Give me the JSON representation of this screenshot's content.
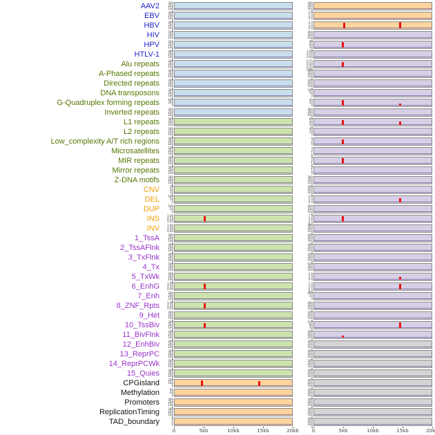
{
  "palette": {
    "labels": {
      "virus": "#2222cc",
      "repeat": "#557700",
      "sv": "#f0a000",
      "chrom": "#9933cc",
      "misc": "#111111"
    },
    "panels": {
      "blue": "#c9deec",
      "green": "#cde3ad",
      "orange": "#fdd49e",
      "purple": "#d6cfe6",
      "gray": "#d4d4d4"
    },
    "spike": "#e51111",
    "baseline": "#7a6a9b"
  },
  "chart_data": {
    "type": "line",
    "title": "",
    "xlabel": "",
    "x_ticks": [
      "0",
      "5kb",
      "10kb",
      "15kb",
      "20kb"
    ],
    "x_tick_pos": [
      0,
      0.25,
      0.5,
      0.75,
      1
    ],
    "legend": "none",
    "note": "Two columns of per-feature signal tracks over a 0-20kb window; red spikes mark enrichment peaks near 5kb and 15kb.",
    "rows": [
      {
        "label": "AAV2",
        "g": "virus",
        "l": {
          "bg": "blue",
          "t": [
            "300",
            "200",
            "100",
            "0"
          ]
        },
        "r": {
          "bg": "orange",
          "t": [
            "300",
            "200",
            "100",
            "0"
          ]
        }
      },
      {
        "label": "EBV",
        "g": "virus",
        "l": {
          "bg": "blue",
          "t": [
            "300",
            "200",
            "100",
            "0"
          ]
        },
        "r": {
          "bg": "orange",
          "t": [
            "2.0",
            "1.0",
            "0.0"
          ]
        }
      },
      {
        "label": "HBV",
        "g": "virus",
        "l": {
          "bg": "blue",
          "t": [
            "300",
            "200",
            "100",
            "0"
          ]
        },
        "r": {
          "bg": "orange",
          "t": [
            "2.0",
            "1.0",
            "0.0"
          ],
          "s": [
            [
              0.25,
              0.85
            ],
            [
              0.73,
              0.9
            ]
          ]
        }
      },
      {
        "label": "HIV",
        "g": "virus",
        "l": {
          "bg": "blue",
          "t": [
            "500",
            "300",
            "100"
          ]
        },
        "r": {
          "bg": "purple",
          "t": [
            "300",
            "200",
            "100",
            "0"
          ]
        }
      },
      {
        "label": "HPV",
        "g": "virus",
        "l": {
          "bg": "blue",
          "t": [
            "300",
            "200",
            "100",
            "0"
          ]
        },
        "r": {
          "bg": "purple",
          "t": [
            "90",
            "60",
            "30",
            "0"
          ],
          "s": [
            [
              0.24,
              0.8
            ]
          ]
        }
      },
      {
        "label": "HTLV-1",
        "g": "virus",
        "l": {
          "bg": "blue",
          "t": [
            "300",
            "200",
            "100",
            "0"
          ]
        },
        "r": {
          "bg": "purple",
          "t": [
            "1.00",
            "0.50",
            "0.00"
          ]
        }
      },
      {
        "label": "Alu repeats",
        "g": "repeat",
        "l": {
          "bg": "blue",
          "t": [
            "300",
            "200",
            "100",
            "0"
          ]
        },
        "r": {
          "bg": "purple",
          "t": [
            "0.75",
            "0.50",
            "0.25",
            "0.00"
          ],
          "s": [
            [
              0.24,
              0.75
            ]
          ]
        }
      },
      {
        "label": "A-Phased repeats",
        "g": "repeat",
        "l": {
          "bg": "blue",
          "t": [
            "300",
            "200",
            "100",
            "0"
          ]
        },
        "r": {
          "bg": "purple",
          "t": [
            "300",
            "200",
            "100",
            "0"
          ]
        }
      },
      {
        "label": "Directed repeats",
        "g": "repeat",
        "l": {
          "bg": "blue",
          "t": [
            "300",
            "200",
            "100",
            "0"
          ]
        },
        "r": {
          "bg": "purple",
          "t": [
            "300",
            "200",
            "100",
            "0"
          ]
        }
      },
      {
        "label": "DNA transposons",
        "g": "repeat",
        "l": {
          "bg": "blue",
          "t": [
            "300",
            "200",
            "100",
            "0"
          ]
        },
        "r": {
          "bg": "purple",
          "t": [
            "100",
            "50",
            "0"
          ]
        }
      },
      {
        "label": "G-Quadruplex forming repeats",
        "g": "repeat",
        "l": {
          "bg": "blue",
          "t": [
            "400",
            "200",
            "0"
          ]
        },
        "r": {
          "bg": "purple",
          "t": [
            "40",
            "20",
            "0"
          ],
          "s": [
            [
              0.24,
              0.8
            ],
            [
              0.73,
              0.3
            ]
          ]
        }
      },
      {
        "label": "Inverted repeats",
        "g": "repeat",
        "l": {
          "bg": "blue",
          "t": [
            "300",
            "200",
            "100",
            "0"
          ]
        },
        "r": {
          "bg": "purple",
          "t": [
            "300",
            "200",
            "100",
            "0"
          ]
        }
      },
      {
        "label": "L1 repeats",
        "g": "repeat",
        "l": {
          "bg": "green",
          "t": [
            "500",
            "300",
            "100"
          ]
        },
        "r": {
          "bg": "purple",
          "t": [
            "60",
            "40",
            "20",
            "0"
          ],
          "s": [
            [
              0.24,
              0.75
            ],
            [
              0.73,
              0.55
            ]
          ]
        }
      },
      {
        "label": "L2 repeats",
        "g": "repeat",
        "l": {
          "bg": "green",
          "t": [
            "300",
            "200",
            "100",
            "0"
          ]
        },
        "r": {
          "bg": "purple",
          "t": [
            "40",
            "20",
            "0"
          ]
        }
      },
      {
        "label": "Low_complexity A/T rich regions",
        "g": "repeat",
        "l": {
          "bg": "green",
          "t": [
            "300",
            "200",
            "100",
            "0"
          ]
        },
        "r": {
          "bg": "purple",
          "t": [
            "4",
            "2",
            "0"
          ],
          "s": [
            [
              0.24,
              0.75
            ]
          ]
        }
      },
      {
        "label": "Microsatellites",
        "g": "repeat",
        "l": {
          "bg": "green",
          "t": [
            "300",
            "200",
            "100",
            "0"
          ]
        },
        "r": {
          "bg": "purple",
          "t": [
            "3",
            "2",
            "1",
            "0"
          ]
        }
      },
      {
        "label": "MIR repeats",
        "g": "repeat",
        "l": {
          "bg": "green",
          "t": [
            "300",
            "200",
            "100",
            "0"
          ]
        },
        "r": {
          "bg": "purple",
          "t": [
            "3",
            "2",
            "1",
            "0"
          ],
          "s": [
            [
              0.24,
              0.8
            ]
          ]
        }
      },
      {
        "label": "Mirror repeats",
        "g": "repeat",
        "l": {
          "bg": "green",
          "t": [
            "500",
            "300",
            "100"
          ]
        },
        "r": {
          "bg": "purple",
          "t": [
            "2",
            "1",
            "0"
          ]
        }
      },
      {
        "label": "Z-DNA motifs",
        "g": "repeat",
        "l": {
          "bg": "green",
          "t": [
            "300",
            "200",
            "100",
            "0"
          ]
        },
        "r": {
          "bg": "purple",
          "t": [
            "300",
            "200",
            "100",
            "0"
          ]
        }
      },
      {
        "label": "CNV",
        "g": "sv",
        "l": {
          "bg": "green",
          "t": [
            "30",
            "20",
            "10",
            "0"
          ]
        },
        "r": {
          "bg": "purple",
          "t": [
            "300",
            "200",
            "100",
            "0"
          ]
        }
      },
      {
        "label": "DEL",
        "g": "sv",
        "l": {
          "bg": "green",
          "t": [
            "100",
            "50",
            "0"
          ]
        },
        "r": {
          "bg": "purple",
          "t": [
            "2.0",
            "1.0",
            "0.0"
          ],
          "s": [
            [
              0.73,
              0.6
            ]
          ]
        }
      },
      {
        "label": "DUP",
        "g": "sv",
        "l": {
          "bg": "green",
          "t": [
            "100",
            "50",
            "0"
          ]
        },
        "r": {
          "bg": "purple",
          "t": [
            "300",
            "200",
            "100",
            "0"
          ]
        }
      },
      {
        "label": "INS",
        "g": "sv",
        "l": {
          "bg": "green",
          "t": [
            "1.00",
            "0.50",
            "0.00"
          ],
          "s": [
            [
              0.25,
              0.85
            ]
          ]
        },
        "r": {
          "bg": "purple",
          "t": [
            "7.5",
            "5.0",
            "2.5",
            "0.0"
          ],
          "s": [
            [
              0.24,
              0.8
            ]
          ]
        }
      },
      {
        "label": "INV",
        "g": "sv",
        "l": {
          "bg": "green",
          "t": [
            "1.00",
            "0.50",
            "0.00"
          ]
        },
        "r": {
          "bg": "purple",
          "t": [
            "300",
            "200",
            "100",
            "0"
          ]
        }
      },
      {
        "label": "1_TssA",
        "g": "chrom",
        "l": {
          "bg": "green",
          "t": [
            "300",
            "200",
            "100",
            "0"
          ]
        },
        "r": {
          "bg": "purple",
          "t": [
            "300",
            "200",
            "100",
            "0"
          ]
        }
      },
      {
        "label": "2_TssAFlnk",
        "g": "chrom",
        "l": {
          "bg": "green",
          "t": [
            "300",
            "200",
            "100",
            "0"
          ]
        },
        "r": {
          "bg": "purple",
          "t": [
            "300",
            "200",
            "100",
            "0"
          ]
        }
      },
      {
        "label": "3_TxFlnk",
        "g": "chrom",
        "l": {
          "bg": "green",
          "t": [
            "300",
            "200",
            "100",
            "0"
          ]
        },
        "r": {
          "bg": "purple",
          "t": [
            "300",
            "200",
            "100",
            "0"
          ]
        }
      },
      {
        "label": "4_Tx",
        "g": "chrom",
        "l": {
          "bg": "green",
          "t": [
            "500",
            "300",
            "100"
          ]
        },
        "r": {
          "bg": "purple",
          "t": [
            "500",
            "300",
            "100"
          ]
        }
      },
      {
        "label": "5_TxWk",
        "g": "chrom",
        "l": {
          "bg": "green",
          "t": [
            "300",
            "200",
            "100",
            "0"
          ]
        },
        "r": {
          "bg": "purple",
          "t": [
            "2.0",
            "1.0",
            "0.0"
          ],
          "s": [
            [
              0.73,
              0.45
            ]
          ]
        }
      },
      {
        "label": "6_EnhG",
        "g": "chrom",
        "l": {
          "bg": "green",
          "t": [
            "1.00",
            "0.50",
            "0.00"
          ],
          "s": [
            [
              0.25,
              0.8
            ]
          ]
        },
        "r": {
          "bg": "purple",
          "t": [
            "1.5",
            "1.0",
            "0.5",
            "0.0"
          ],
          "s": [
            [
              0.73,
              0.8
            ]
          ]
        }
      },
      {
        "label": "7_Enh",
        "g": "chrom",
        "l": {
          "bg": "green",
          "t": [
            "300",
            "200",
            "100",
            "0"
          ]
        },
        "r": {
          "bg": "purple",
          "t": [
            "100",
            "50",
            "0"
          ]
        }
      },
      {
        "label": "8_ZNF_Rpts",
        "g": "chrom",
        "l": {
          "bg": "green",
          "t": [
            "1.00",
            "0.50",
            "0.00"
          ],
          "s": [
            [
              0.25,
              0.8
            ]
          ]
        },
        "r": {
          "bg": "purple",
          "t": [
            "300",
            "200",
            "100",
            "0"
          ]
        }
      },
      {
        "label": "9_Het",
        "g": "chrom",
        "l": {
          "bg": "green",
          "t": [
            "300",
            "200",
            "100",
            "0"
          ]
        },
        "r": {
          "bg": "purple",
          "t": [
            "300",
            "200",
            "100",
            "0"
          ]
        }
      },
      {
        "label": "10_TssBiv",
        "g": "chrom",
        "l": {
          "bg": "green",
          "t": [
            "300",
            "200",
            "100",
            "0"
          ],
          "s": [
            [
              0.25,
              0.7
            ]
          ]
        },
        "r": {
          "bg": "purple",
          "t": [
            "120",
            "80",
            "40",
            "0"
          ],
          "s": [
            [
              0.73,
              0.85
            ]
          ]
        }
      },
      {
        "label": "11_BivFlnk",
        "g": "chrom",
        "l": {
          "bg": "green",
          "t": [
            "300",
            "200",
            "100",
            "0"
          ]
        },
        "r": {
          "bg": "purple",
          "t": [
            "300",
            "200",
            "100",
            "0"
          ],
          "s": [
            [
              0.24,
              0.3
            ]
          ]
        }
      },
      {
        "label": "12_EnhBiv",
        "g": "chrom",
        "l": {
          "bg": "green",
          "t": [
            "300",
            "200",
            "100",
            "0"
          ]
        },
        "r": {
          "bg": "gray",
          "t": [
            "300",
            "200",
            "100",
            "0"
          ]
        }
      },
      {
        "label": "13_ReprPC",
        "g": "chrom",
        "l": {
          "bg": "green",
          "t": [
            "300",
            "200",
            "100",
            "0"
          ]
        },
        "r": {
          "bg": "gray",
          "t": [
            "300",
            "200",
            "100",
            "0"
          ]
        }
      },
      {
        "label": "14_ReprPCWk",
        "g": "chrom",
        "l": {
          "bg": "green",
          "t": [
            "300",
            "200",
            "100",
            "0"
          ]
        },
        "r": {
          "bg": "gray",
          "t": [
            "300",
            "200",
            "100",
            "0"
          ]
        }
      },
      {
        "label": "15_Quies",
        "g": "chrom",
        "l": {
          "bg": "green",
          "t": [
            "300",
            "200",
            "100",
            "0"
          ]
        },
        "r": {
          "bg": "gray",
          "t": [
            "300",
            "200",
            "100",
            "0"
          ]
        }
      },
      {
        "label": "CPGisland",
        "g": "misc",
        "l": {
          "bg": "orange",
          "t": [
            "200",
            "100",
            "0"
          ],
          "s": [
            [
              0.23,
              0.8
            ],
            [
              0.72,
              0.75
            ]
          ]
        },
        "r": {
          "bg": "gray",
          "t": [
            "300",
            "200",
            "100",
            "0"
          ]
        }
      },
      {
        "label": "Methylation",
        "g": "misc",
        "l": {
          "bg": "orange",
          "t": [
            "80",
            "40",
            "0"
          ]
        },
        "r": {
          "bg": "gray",
          "t": [
            "300",
            "200",
            "100",
            "0"
          ]
        }
      },
      {
        "label": "Promoters",
        "g": "misc",
        "l": {
          "bg": "orange",
          "t": [
            "300",
            "200",
            "100",
            "0"
          ]
        },
        "r": {
          "bg": "gray",
          "t": [
            "300",
            "200",
            "100",
            "0"
          ]
        }
      },
      {
        "label": "ReplicationTiming",
        "g": "misc",
        "l": {
          "bg": "orange",
          "t": [
            "300",
            "200",
            "100",
            "0"
          ]
        },
        "r": {
          "bg": "gray",
          "t": [
            "300",
            "200",
            "100",
            "0"
          ]
        }
      },
      {
        "label": "TAD_boundary",
        "g": "misc",
        "l": {
          "bg": "orange",
          "t": [
            "4",
            "2",
            "0"
          ]
        },
        "r": {
          "bg": "gray",
          "t": [
            "300",
            "200",
            "100",
            "0"
          ]
        }
      }
    ]
  }
}
